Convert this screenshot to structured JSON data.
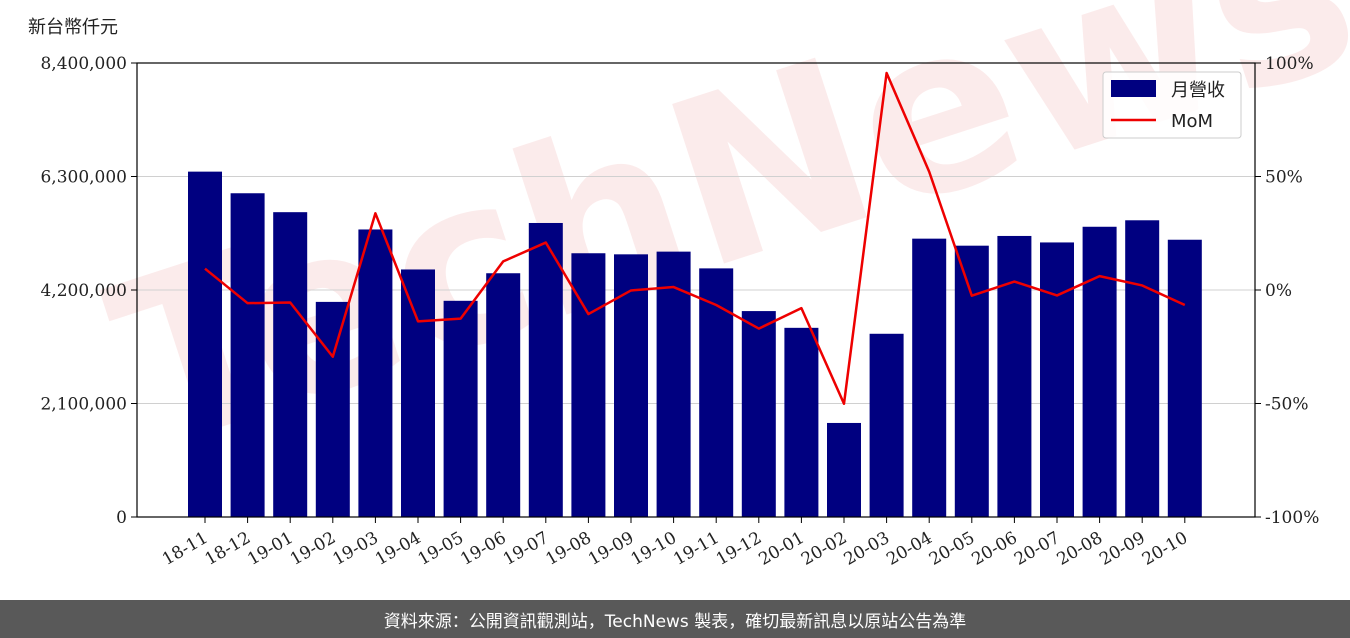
{
  "footer": {
    "source": "資料來源：公開資訊觀測站，TechNews 製表，確切最新訊息以原站公告為準"
  },
  "watermark": {
    "text": "TechNews"
  },
  "chart_data": {
    "type": "bar",
    "categories": [
      "18-11",
      "18-12",
      "19-01",
      "19-02",
      "19-03",
      "19-04",
      "19-05",
      "19-06",
      "19-07",
      "19-08",
      "19-09",
      "19-10",
      "19-11",
      "19-12",
      "20-01",
      "20-02",
      "20-03",
      "20-04",
      "20-05",
      "20-06",
      "20-07",
      "20-08",
      "20-09",
      "20-10"
    ],
    "series": [
      {
        "name": "月營收",
        "type": "bar",
        "axis": "left",
        "color": "#000080",
        "values": [
          6390000,
          5990000,
          5640000,
          3980000,
          5320000,
          4580000,
          4000000,
          4510000,
          5440000,
          4880000,
          4860000,
          4910000,
          4600000,
          3810000,
          3500000,
          1740000,
          3390000,
          5150000,
          5020000,
          5200000,
          5080000,
          5370000,
          5490000,
          5130000
        ]
      },
      {
        "name": "MoM",
        "type": "line",
        "axis": "right",
        "color": "#ee0000",
        "values": [
          9.4,
          -5.8,
          -5.5,
          -29.4,
          33.8,
          -13.8,
          -12.6,
          12.6,
          20.9,
          -10.6,
          -0.2,
          1.3,
          -6.6,
          -17.0,
          -8.0,
          -50.1,
          95.6,
          52.1,
          -2.5,
          3.7,
          -2.4,
          6.1,
          2.0,
          -6.6
        ]
      }
    ],
    "ylabel": "新台幣仟元",
    "ylim": [
      0,
      8400000
    ],
    "yticks": [
      0,
      2100000,
      4200000,
      6300000,
      8400000
    ],
    "ytick_labels": [
      "0",
      "2,100,000",
      "4,200,000",
      "6,300,000",
      "8,400,000"
    ],
    "y2lim": [
      -100,
      100
    ],
    "y2ticks": [
      -100,
      -50,
      0,
      50,
      100
    ],
    "y2tick_labels": [
      "-100%",
      "-50%",
      "0%",
      "50%",
      "100%"
    ],
    "grid": "horizontal",
    "legend": {
      "position": "top-right",
      "entries": [
        "月營收",
        "MoM"
      ]
    }
  }
}
